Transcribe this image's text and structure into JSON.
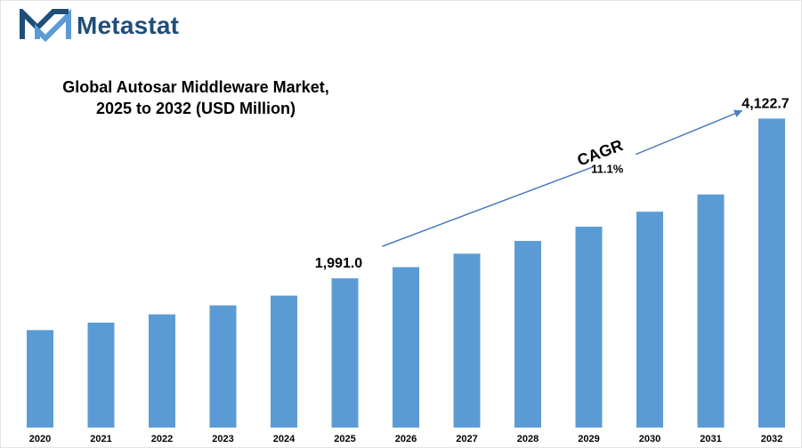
{
  "brand": {
    "name": "Metastat"
  },
  "chart_data": {
    "type": "bar",
    "title_line1": "Global Autosar Middleware Market,",
    "title_line2": "2025 to 2032 (USD Million)",
    "xlabel": "",
    "ylabel": "",
    "categories": [
      "2020",
      "2021",
      "2022",
      "2023",
      "2024",
      "2025",
      "2026",
      "2027",
      "2028",
      "2029",
      "2030",
      "2031",
      "2032"
    ],
    "values": [
      1300,
      1400,
      1510,
      1630,
      1760,
      1991.0,
      2140,
      2320,
      2490,
      2680,
      2880,
      3110,
      4122.7
    ],
    "ylim": [
      0,
      4400
    ],
    "grid": false,
    "bar_color": "#5b9bd5",
    "data_labels": [
      {
        "category": "2025",
        "text": "1,991.0"
      },
      {
        "category": "2032",
        "text": "4,122.7"
      }
    ],
    "annotation": {
      "title": "CAGR",
      "value": "11.1%",
      "arrow_color": "#4a7ebb"
    }
  }
}
